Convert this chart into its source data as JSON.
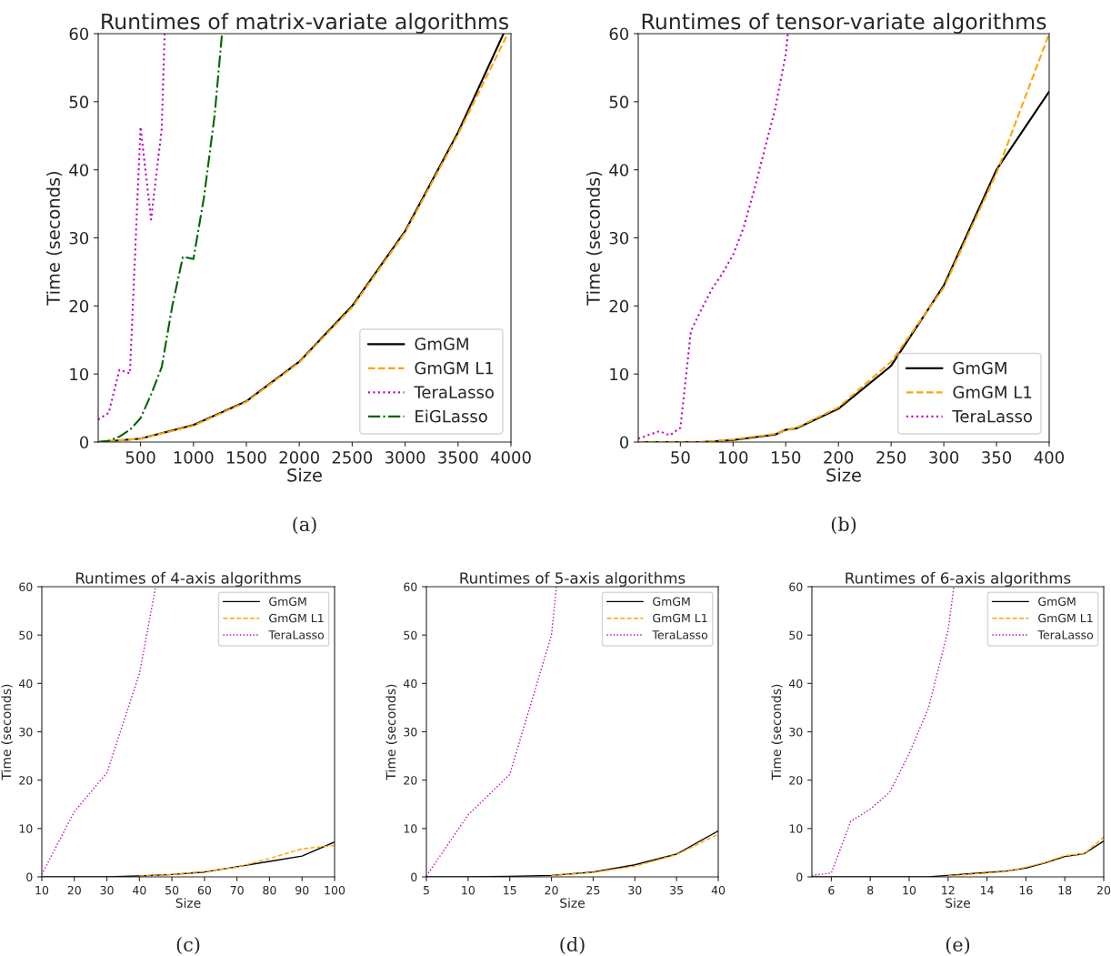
{
  "chart_data": [
    {
      "type": "line",
      "title": "Runtimes of matrix-variate algorithms",
      "xlabel": "Size",
      "ylabel": "Time (seconds)",
      "xlim": [
        100,
        4000
      ],
      "xticks": [
        500,
        1000,
        1500,
        2000,
        2500,
        3000,
        3500,
        4000
      ],
      "ylim": [
        0,
        60
      ],
      "yticks": [
        0,
        10,
        20,
        30,
        40,
        50,
        60
      ],
      "grid": false,
      "legend": "bottom right",
      "annotations": [
        "(a)"
      ],
      "series": [
        {
          "name": "GmGM",
          "color": "#000000",
          "line_style": "solid",
          "x": [
            100,
            500,
            1000,
            1500,
            2000,
            2500,
            3000,
            3500,
            3930
          ],
          "values": [
            0,
            0.5,
            2.5,
            6,
            11.8,
            20,
            31,
            45.5,
            60
          ]
        },
        {
          "name": "GmGM L1",
          "color": "#ffa500",
          "line_style": "dashed",
          "x": [
            100,
            500,
            1000,
            1500,
            2000,
            2500,
            3000,
            3500,
            3970
          ],
          "values": [
            0,
            0.5,
            2.4,
            5.9,
            11.7,
            19.8,
            30.8,
            45.2,
            60
          ]
        },
        {
          "name": "TeraLasso",
          "color": "#bf00bf",
          "line_style": "dotted",
          "x": [
            100,
            200,
            300,
            400,
            500,
            600,
            700,
            728
          ],
          "values": [
            3.3,
            4.3,
            10.6,
            10.1,
            46.3,
            32.7,
            46,
            60
          ]
        },
        {
          "name": "EiGLasso",
          "color": "#006400",
          "line_style": "dashdot",
          "x": [
            100,
            200,
            300,
            400,
            500,
            600,
            700,
            800,
            900,
            1000,
            1100,
            1200,
            1270
          ],
          "values": [
            0,
            0.2,
            0.8,
            1.8,
            3.5,
            7,
            11,
            20,
            27.2,
            26.9,
            36,
            48,
            60
          ]
        }
      ]
    },
    {
      "type": "line",
      "title": "Runtimes of tensor-variate algorithms",
      "xlabel": "Size",
      "ylabel": "Time (seconds)",
      "xlim": [
        10,
        400
      ],
      "xticks": [
        50,
        100,
        150,
        200,
        250,
        300,
        350,
        400
      ],
      "ylim": [
        0,
        60
      ],
      "yticks": [
        0,
        10,
        20,
        30,
        40,
        50,
        60
      ],
      "grid": false,
      "legend": "bottom right",
      "annotations": [
        "(b)"
      ],
      "series": [
        {
          "name": "GmGM",
          "color": "#000000",
          "line_style": "solid",
          "x": [
            10,
            50,
            70,
            100,
            140,
            150,
            160,
            200,
            250,
            300,
            350,
            400
          ],
          "values": [
            0,
            0,
            0,
            0.3,
            1.1,
            1.8,
            2.0,
            4.9,
            11.2,
            23,
            40,
            51.5
          ]
        },
        {
          "name": "GmGM L1",
          "color": "#ffa500",
          "line_style": "dashed",
          "x": [
            10,
            50,
            70,
            100,
            140,
            150,
            160,
            200,
            250,
            300,
            350,
            400
          ],
          "values": [
            0,
            0,
            0,
            0.4,
            1.2,
            1.7,
            2.1,
            5.1,
            11.8,
            22.7,
            39.5,
            60
          ]
        },
        {
          "name": "TeraLasso",
          "color": "#bf00bf",
          "line_style": "dotted",
          "x": [
            10,
            30,
            40,
            50,
            60,
            70,
            80,
            90,
            100,
            110,
            120,
            130,
            140,
            150,
            152
          ],
          "values": [
            0.5,
            1.6,
            1.0,
            2.1,
            16.3,
            19.5,
            22.5,
            24.8,
            27.5,
            31.5,
            37,
            43,
            49,
            57,
            60
          ]
        }
      ]
    },
    {
      "type": "line",
      "title": "Runtimes of 4-axis algorithms",
      "xlabel": "Size",
      "ylabel": "Time (seconds)",
      "xlim": [
        10,
        100
      ],
      "xticks": [
        10,
        20,
        30,
        40,
        50,
        60,
        70,
        80,
        90,
        100
      ],
      "ylim": [
        0,
        60
      ],
      "yticks": [
        0,
        10,
        20,
        30,
        40,
        50,
        60
      ],
      "grid": false,
      "legend": "top right",
      "annotations": [
        "(c)"
      ],
      "series": [
        {
          "name": "GmGM",
          "color": "#000000",
          "line_style": "solid",
          "x": [
            10,
            20,
            30,
            40,
            50,
            60,
            70,
            80,
            90,
            100
          ],
          "values": [
            0,
            0,
            0,
            0.2,
            0.5,
            1.0,
            2.1,
            3.2,
            4.3,
            7.2
          ]
        },
        {
          "name": "GmGM L1",
          "color": "#ffa500",
          "line_style": "dashed",
          "x": [
            40,
            50,
            60,
            70,
            80,
            90,
            100
          ],
          "values": [
            0.2,
            0.5,
            1.1,
            2.0,
            3.8,
            5.8,
            6.5
          ]
        },
        {
          "name": "TeraLasso",
          "color": "#bf00bf",
          "line_style": "dotted",
          "x": [
            10,
            20,
            30,
            40,
            45
          ],
          "values": [
            0.5,
            13.5,
            21.5,
            42,
            60
          ]
        }
      ]
    },
    {
      "type": "line",
      "title": "Runtimes of 5-axis algorithms",
      "xlabel": "Size",
      "ylabel": "Time (seconds)",
      "xlim": [
        5,
        40
      ],
      "xticks": [
        5,
        10,
        15,
        20,
        25,
        30,
        35,
        40
      ],
      "ylim": [
        0,
        60
      ],
      "yticks": [
        0,
        10,
        20,
        30,
        40,
        50,
        60
      ],
      "grid": false,
      "legend": "top right",
      "annotations": [
        "(d)"
      ],
      "series": [
        {
          "name": "GmGM",
          "color": "#000000",
          "line_style": "solid",
          "x": [
            5,
            10,
            15,
            20,
            25,
            30,
            35,
            40
          ],
          "values": [
            0,
            0,
            0.1,
            0.3,
            1.0,
            2.5,
            4.7,
            9.5
          ]
        },
        {
          "name": "GmGM L1",
          "color": "#ffa500",
          "line_style": "dashed",
          "x": [
            20,
            25,
            30,
            35,
            40
          ],
          "values": [
            0.3,
            0.9,
            2.2,
            4.6,
            8.8
          ]
        },
        {
          "name": "TeraLasso",
          "color": "#bf00bf",
          "line_style": "dotted",
          "x": [
            5,
            10,
            15,
            20,
            20.6
          ],
          "values": [
            0.2,
            12.8,
            21.2,
            50,
            60
          ]
        }
      ]
    },
    {
      "type": "line",
      "title": "Runtimes of 6-axis algorithms",
      "xlabel": "Size",
      "ylabel": "Time (seconds)",
      "xlim": [
        5,
        20
      ],
      "xticks": [
        6,
        8,
        10,
        12,
        14,
        16,
        18,
        20
      ],
      "ylim": [
        0,
        60
      ],
      "yticks": [
        0,
        10,
        20,
        30,
        40,
        50,
        60
      ],
      "grid": false,
      "legend": "top right",
      "annotations": [
        "(e)"
      ],
      "series": [
        {
          "name": "GmGM",
          "color": "#000000",
          "line_style": "solid",
          "x": [
            5,
            6,
            7,
            8,
            9,
            10,
            11,
            12,
            13,
            14,
            15,
            16,
            17,
            18,
            19,
            20
          ],
          "values": [
            0,
            0,
            0,
            0,
            0,
            0,
            0,
            0.3,
            0.6,
            0.9,
            1.2,
            1.8,
            2.9,
            4.2,
            4.8,
            7.4
          ]
        },
        {
          "name": "GmGM L1",
          "color": "#ffa500",
          "line_style": "dashed",
          "x": [
            12,
            13,
            14,
            15,
            16,
            17,
            18,
            19,
            20
          ],
          "values": [
            0.2,
            0.5,
            0.8,
            1.1,
            2.0,
            3.0,
            4.4,
            4.8,
            8.2
          ]
        },
        {
          "name": "TeraLasso",
          "color": "#bf00bf",
          "line_style": "dotted",
          "x": [
            5,
            6,
            7,
            8,
            9,
            10,
            11,
            12,
            12.3
          ],
          "values": [
            0.3,
            0.8,
            11.5,
            14,
            17.5,
            25.5,
            35,
            51,
            60
          ]
        }
      ]
    }
  ]
}
